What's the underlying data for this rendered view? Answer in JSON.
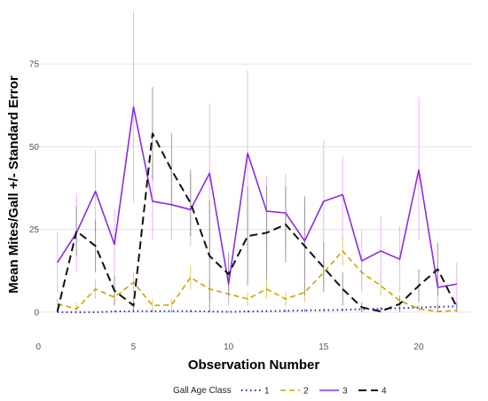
{
  "chart_data": {
    "type": "line",
    "xlabel": "Observation Number",
    "ylabel": "Mean Mites/Gall +/- Standard Error",
    "xlim": [
      -0.2,
      22.8
    ],
    "ylim": [
      -7,
      93
    ],
    "xticks": [
      0,
      5,
      10,
      15,
      20
    ],
    "yticks": [
      0,
      25,
      50,
      75
    ],
    "grid": true,
    "legend": {
      "title": "Gall Age Class",
      "position": "bottom"
    },
    "series": [
      {
        "name": "1",
        "color": "#2b22c8",
        "dash": "1.5 3.5",
        "width": 2,
        "error_color": "#6d64e0",
        "x": [
          1,
          2,
          3,
          4,
          5,
          6,
          7,
          8,
          9,
          10,
          11,
          12,
          13,
          14,
          15,
          16,
          17,
          18,
          19,
          20,
          21,
          22
        ],
        "y": [
          0,
          0,
          0,
          0.2,
          0.3,
          0.3,
          0.3,
          0.3,
          0.2,
          0.1,
          0.2,
          0.3,
          0.4,
          0.5,
          0.6,
          0.7,
          0.9,
          1,
          1.2,
          1.4,
          1.6,
          1.8
        ],
        "low": [
          0,
          0,
          0,
          0,
          0,
          0,
          0,
          0,
          0,
          0,
          0,
          0,
          0,
          0,
          0.2,
          0.3,
          0.4,
          0.5,
          0.6,
          0.7,
          0.8,
          0.9
        ],
        "high": [
          0,
          0,
          0,
          0.6,
          0.8,
          0.8,
          0.8,
          0.8,
          0.6,
          0.4,
          0.5,
          0.6,
          0.8,
          1,
          1.1,
          1.2,
          1.4,
          1.6,
          1.8,
          2.1,
          2.4,
          2.7
        ]
      },
      {
        "name": "2",
        "color": "#c9a300",
        "dash": "6 4",
        "width": 1.6,
        "error_color": "#d8c25a",
        "x": [
          1,
          2,
          3,
          4,
          5,
          6,
          7,
          8,
          9,
          10,
          11,
          12,
          13,
          14,
          15,
          16,
          17,
          18,
          19,
          20,
          21,
          22
        ],
        "y": [
          2.5,
          1,
          7,
          4.5,
          9,
          2,
          2.2,
          10.5,
          7,
          5.5,
          4,
          7,
          4,
          6,
          12,
          18.5,
          12,
          8,
          3.5,
          1,
          0.2,
          0.5
        ],
        "low": [
          1,
          0,
          4,
          2,
          6,
          0.5,
          0.5,
          7,
          4,
          3,
          2,
          4,
          2,
          3,
          8,
          14,
          8,
          5,
          2,
          0,
          0,
          0
        ],
        "high": [
          4,
          3,
          10,
          7,
          12,
          4,
          4,
          14,
          10,
          8,
          6,
          10,
          6,
          9,
          16,
          23,
          16,
          11,
          5,
          2,
          0.6,
          1.2
        ]
      },
      {
        "name": "3",
        "color": "#8b2be2",
        "dash": "",
        "width": 1.6,
        "error_color": "#e4a8f2",
        "x": [
          1,
          2,
          3,
          4,
          5,
          6,
          7,
          8,
          9,
          10,
          11,
          12,
          13,
          14,
          15,
          16,
          17,
          18,
          19,
          20,
          21,
          22
        ],
        "y": [
          15,
          24,
          36.5,
          20.5,
          62,
          33.5,
          32.5,
          31,
          42,
          8.5,
          48,
          30.5,
          30,
          21.5,
          33.5,
          35.5,
          15.5,
          18.5,
          16,
          43,
          7.5,
          8.5
        ],
        "low": [
          6,
          12,
          24,
          10,
          33,
          22,
          22,
          20,
          16,
          2,
          18,
          20,
          18,
          10,
          20,
          22,
          6,
          8,
          6,
          22,
          2,
          3
        ],
        "high": [
          24,
          36,
          49,
          31,
          91,
          45,
          43,
          42,
          63,
          15,
          73,
          41,
          42,
          33,
          52,
          47,
          25,
          29,
          26,
          65,
          13,
          15
        ]
      },
      {
        "name": "4",
        "color": "#111111",
        "dash": "9 5",
        "width": 2,
        "error_color": "#8a8a8a",
        "x": [
          1,
          2,
          3,
          4,
          5,
          6,
          7,
          8,
          9,
          10,
          11,
          12,
          13,
          14,
          15,
          16,
          17,
          18,
          19,
          20,
          21,
          22
        ],
        "y": [
          0.2,
          24.5,
          20,
          6.5,
          2,
          54,
          43,
          33,
          17,
          11.5,
          23,
          24,
          26.5,
          20,
          13.5,
          7,
          1.5,
          0.2,
          2.5,
          8,
          13,
          1.5
        ],
        "low": [
          0,
          17,
          12,
          2,
          0,
          40,
          32,
          23,
          0,
          5,
          8,
          10,
          15,
          5,
          6,
          2,
          0,
          0,
          0,
          3,
          5,
          0
        ],
        "high": [
          0.4,
          32,
          28,
          11,
          4,
          68,
          54,
          43,
          34,
          18,
          38,
          38,
          38,
          35,
          21,
          12,
          3,
          0.4,
          5,
          13,
          21,
          3
        ]
      }
    ]
  }
}
